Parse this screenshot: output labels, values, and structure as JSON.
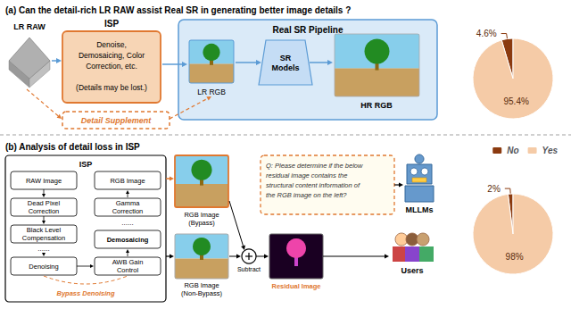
{
  "chart_data": [
    {
      "type": "pie",
      "title": "MLLMs",
      "categories": [
        "No",
        "Yes"
      ],
      "values": [
        4.6,
        95.4
      ],
      "value_labels": [
        "4.6%",
        "95.4%"
      ],
      "colors": [
        "#8b3a0f",
        "#f5cba7"
      ],
      "data_labels": true,
      "legend": "right"
    },
    {
      "type": "pie",
      "title": "Users",
      "categories": [
        "No",
        "Yes"
      ],
      "values": [
        2.0,
        98.0
      ],
      "value_labels": [
        "2%",
        "98%"
      ],
      "colors": [
        "#8b3a0f",
        "#f5cba7"
      ],
      "data_labels": true
    },
    {
      "type": "diagram",
      "annotations": [
        "(a) Can the detail-rich LR RAW assist Real SR in generating better image details ?",
        "LR RAW",
        "ISP",
        "Denoise,\nDemosaicing, Color\nCorrection, etc.\n\n(Details may be lost.)",
        "Real SR Pipeline",
        "LR RGB",
        "SR\nModels",
        "HR RGB",
        "Detail Supplement",
        "(b) Analysis of detail loss in ISP",
        "ISP",
        "RAW Image",
        "Dead Pixel\nCorrection",
        "Black Level\nCompensation",
        "......",
        "Denoising",
        "RGB Image",
        "Gamma\nCorrection",
        "......",
        "Demosaicing",
        "AWB Gain\nControl",
        "Bypass Denoising",
        "RGB Image\n(Bypass)",
        "RGB Image\n(Non-Bypass)",
        "Subtract",
        "Residual Image",
        "Q: Please determine if the below\nresidual image contains the\nstructural content information of\nthe RGB image on the left?"
      ]
    }
  ]
}
